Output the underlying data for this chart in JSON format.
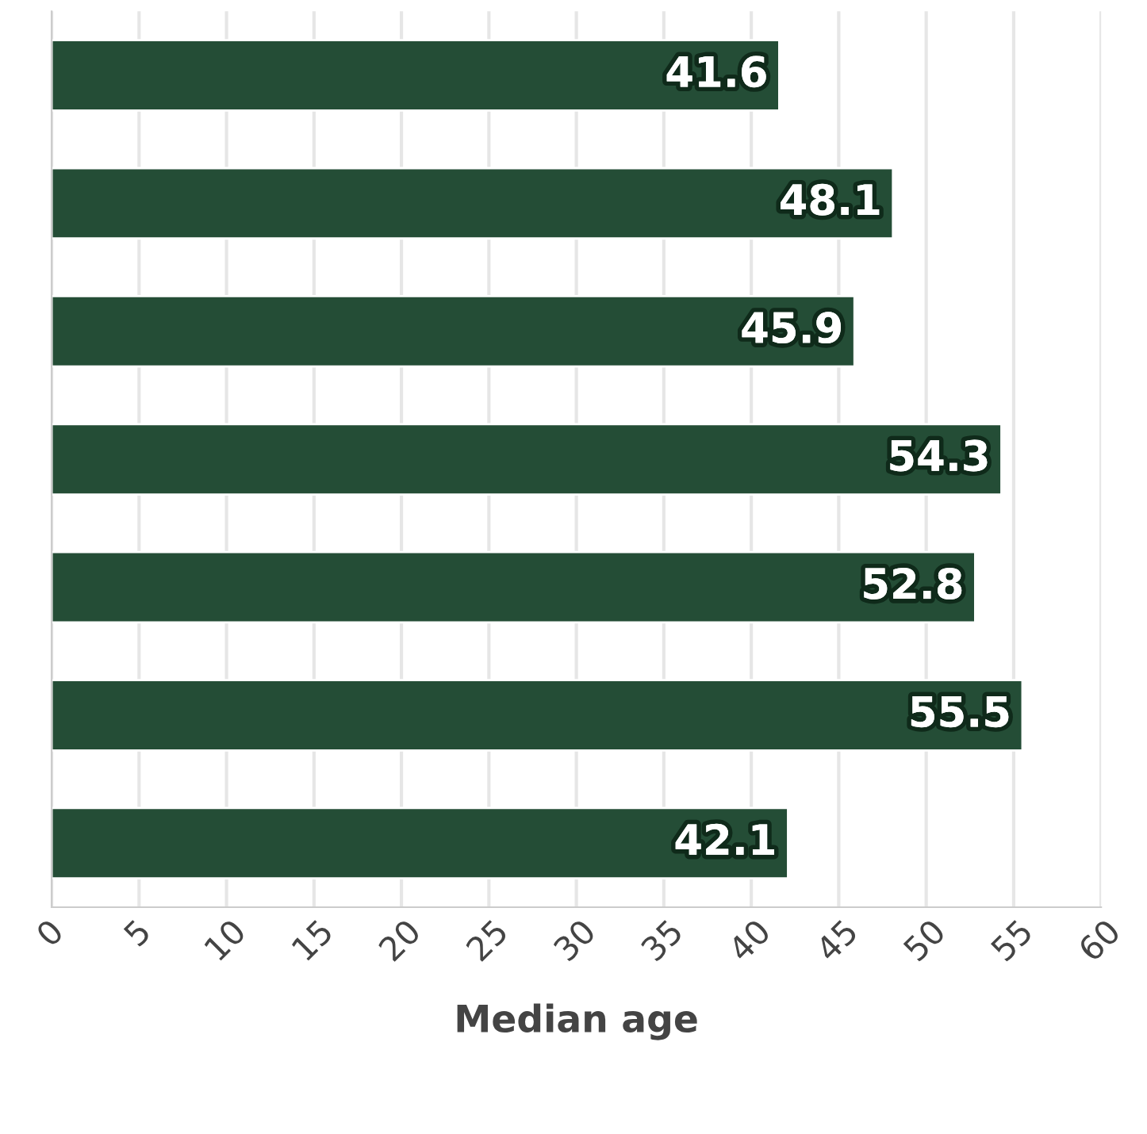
{
  "chart_data": {
    "type": "bar",
    "orientation": "horizontal",
    "xlabel": "Median age",
    "categories": [
      null,
      null,
      null,
      null,
      null,
      null,
      null
    ],
    "values": [
      41.6,
      48.1,
      45.9,
      54.3,
      52.8,
      55.5,
      42.1
    ],
    "color": "#244d36",
    "xlim": [
      0,
      60
    ],
    "xticks": [
      0,
      5,
      10,
      15,
      20,
      25,
      30,
      35,
      40,
      45,
      50,
      55,
      60
    ],
    "grid": "x",
    "data_labels": true
  }
}
